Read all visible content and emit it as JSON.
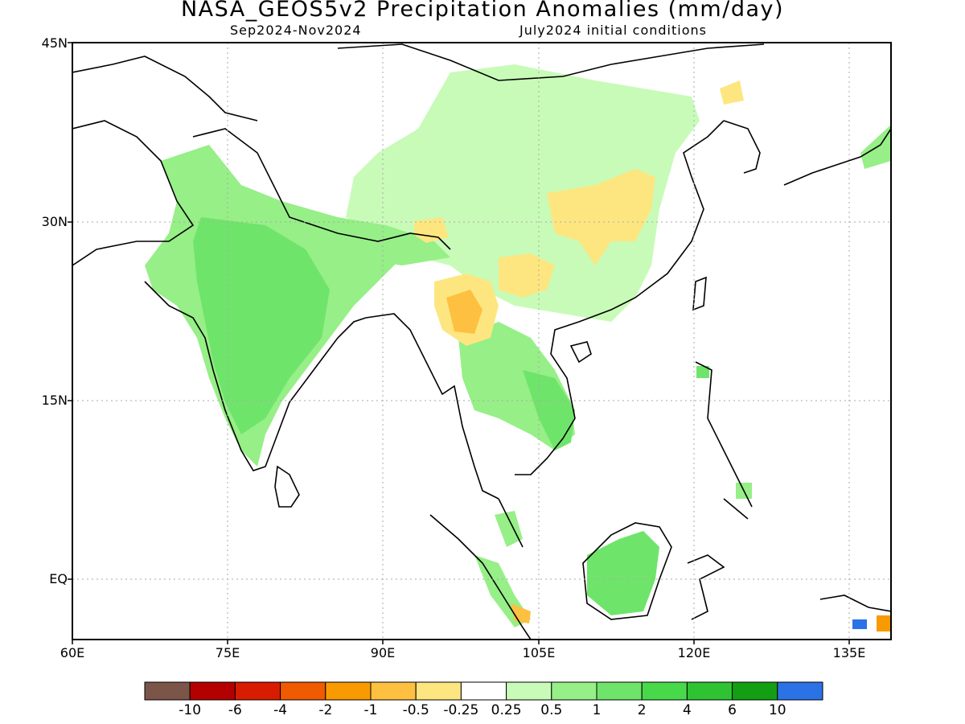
{
  "title": "NASA_GEOS5v2 Precipitation Anomalies (mm/day)",
  "subtitle_left": "Sep2024-Nov2024",
  "subtitle_right": "July2024 initial conditions",
  "axes": {
    "lat_ticks": [
      "45N",
      "30N",
      "15N",
      "EQ"
    ],
    "lon_ticks": [
      "60E",
      "75E",
      "90E",
      "105E",
      "120E",
      "135E"
    ],
    "grid": true
  },
  "colorbar": {
    "colors": [
      "#7a5548",
      "#b40000",
      "#d81c00",
      "#f05a00",
      "#f99a00",
      "#fdc040",
      "#fde680",
      "#ffffff",
      "#c8fbb8",
      "#96ef87",
      "#6fe46a",
      "#48d94a",
      "#2fc233",
      "#139f14",
      "#2b72e6"
    ],
    "labels": [
      "-10",
      "-6",
      "-4",
      "-2",
      "-1",
      "-0.5",
      "-0.25",
      "0.25",
      "0.5",
      "1",
      "2",
      "4",
      "6",
      "10"
    ]
  },
  "map_region": {
    "lon_range": [
      60,
      140
    ],
    "lat_range": [
      -5,
      45
    ]
  },
  "anomaly_regions": [
    {
      "category": "0.25-0.5"
    },
    {
      "category": "0.5-1"
    },
    {
      "category": "1-2"
    },
    {
      "category": "-0.25--0.5"
    },
    {
      "category": "-0.5--1"
    },
    {
      "category": "-1--2"
    }
  ]
}
